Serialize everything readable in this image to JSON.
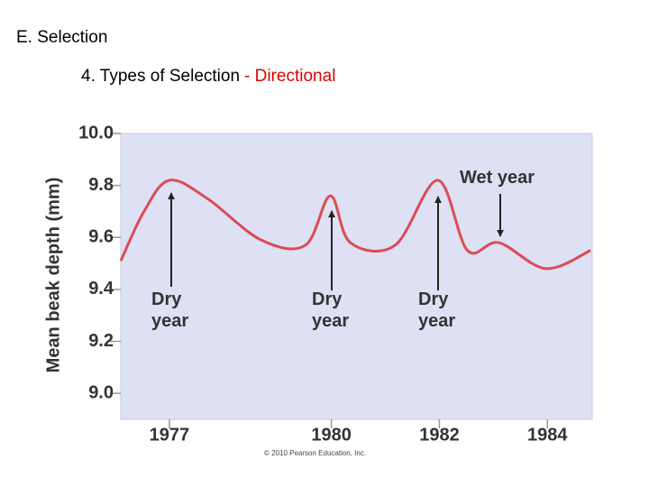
{
  "slide": {
    "heading": "E. Selection",
    "subheading": {
      "text": "4. Types of Selection",
      "highlight": "- Directional"
    }
  },
  "chart_data": {
    "type": "line",
    "y_label": "Mean beak depth (mm)",
    "source": "© 2010 Pearson Education, Inc.",
    "x": [
      1976.1,
      1976.53,
      1977,
      1977.7,
      1978.7,
      1979.52,
      1979.98,
      1980.35,
      1981.18,
      1981.97,
      1982.52,
      1983.1,
      1983.97,
      1984.8
    ],
    "series": [
      {
        "color": "#dc4b55",
        "values": [
          9.51,
          9.7,
          9.82,
          9.75,
          9.59,
          9.57,
          9.76,
          9.58,
          9.57,
          9.82,
          9.55,
          9.58,
          9.48,
          9.55
        ]
      }
    ],
    "xlim": [
      1976.1,
      1984.83
    ],
    "ylim": [
      8.9,
      10.0
    ],
    "xticks": [
      1977,
      1980,
      1982,
      1984
    ],
    "yticks": [
      {
        "value": 9.0,
        "label": "9.0"
      },
      9.2,
      9.4,
      9.6,
      9.8,
      {
        "value": 10.0,
        "label": "10.0"
      }
    ],
    "annotations": [
      "Dry year",
      "Dry year",
      "Dry year",
      "Wet year"
    ]
  }
}
